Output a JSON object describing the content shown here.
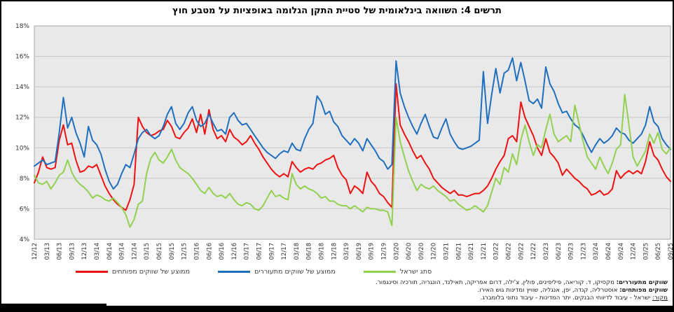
{
  "title": "תרשים 4: השוואה בינלאומית של סטיית התקן הגלומה באופציות על מטבע חוץ",
  "colors": {
    "plot_bg": "#e9e9e9",
    "grid": "#c7c7c7",
    "plot_border": "#a8a8a8",
    "axis_text": "#333333",
    "developed_red": "#ee1111",
    "emerging_blue": "#1f6fbe",
    "israel_green": "#92d050"
  },
  "y_axis": {
    "min": 4,
    "max": 18,
    "step": 2,
    "tick_labels": [
      "4%",
      "6%",
      "8%",
      "10%",
      "12%",
      "14%",
      "16%",
      "18%"
    ]
  },
  "x_axis": {
    "tick_labels": [
      "12/12",
      "03/13",
      "06/13",
      "09/13",
      "12/13",
      "03/14",
      "06/14",
      "09/14",
      "12/14",
      "03/15",
      "06/15",
      "09/15",
      "12/15",
      "03/16",
      "06/16",
      "09/16",
      "12/16",
      "03/17",
      "06/17",
      "09/17",
      "12/17",
      "03/18",
      "06/18",
      "09/18",
      "12/18",
      "03/19",
      "06/19",
      "09/19",
      "12/19",
      "03/20",
      "06/20",
      "09/20",
      "12/20",
      "03/21",
      "06/21",
      "09/21",
      "12/21",
      "03/22",
      "06/22",
      "09/22",
      "12/22",
      "03/23",
      "06/23",
      "09/23",
      "12/23",
      "03/24",
      "06/24",
      "09/24",
      "12/24",
      "03/25",
      "06/25",
      "09/25"
    ],
    "months_per_tick": 3
  },
  "chart_data": {
    "type": "line",
    "x_start": "12/2012",
    "x_end": "09/2025",
    "x_frequency": "monthly",
    "n_points": 154,
    "ylim": [
      4,
      18
    ],
    "grid": true,
    "legend_position": "bottom",
    "series": [
      {
        "name": "ממוצע של שווקים מפותחים",
        "color": "#ee1111",
        "values": [
          7.7,
          8.4,
          9.4,
          8.7,
          8.6,
          8.7,
          10.5,
          11.5,
          10.2,
          10.3,
          9.2,
          8.4,
          8.5,
          8.8,
          8.7,
          8.9,
          8.2,
          7.5,
          7.0,
          6.6,
          6.3,
          6.1,
          5.9,
          6.6,
          7.6,
          12.0,
          11.4,
          11.0,
          10.8,
          10.9,
          11.1,
          11.2,
          11.8,
          11.4,
          10.7,
          10.6,
          11.0,
          11.3,
          11.9,
          11.0,
          12.2,
          10.9,
          12.5,
          11.2,
          10.6,
          10.8,
          10.4,
          11.2,
          10.7,
          10.5,
          10.2,
          10.4,
          10.8,
          10.3,
          9.9,
          9.4,
          9.0,
          8.6,
          8.3,
          8.1,
          8.3,
          8.1,
          9.1,
          8.7,
          8.4,
          8.6,
          8.7,
          8.6,
          8.9,
          9.0,
          9.2,
          9.3,
          9.5,
          8.7,
          8.2,
          7.9,
          7.0,
          7.5,
          7.3,
          7.0,
          8.4,
          7.8,
          7.5,
          7.0,
          6.8,
          6.4,
          6.1,
          14.2,
          11.5,
          10.9,
          10.4,
          9.8,
          9.3,
          9.5,
          9.0,
          8.6,
          8.0,
          7.7,
          7.4,
          7.2,
          7.0,
          7.2,
          6.9,
          6.9,
          6.8,
          6.9,
          7.0,
          7.0,
          7.2,
          7.5,
          8.0,
          8.6,
          9.1,
          9.5,
          10.6,
          10.8,
          10.4,
          13.0,
          12.0,
          11.4,
          10.8,
          10.0,
          9.5,
          10.6,
          9.7,
          9.4,
          9.0,
          8.2,
          8.6,
          8.3,
          8.0,
          7.8,
          7.5,
          7.3,
          6.9,
          7.0,
          7.2,
          6.9,
          7.0,
          7.3,
          8.5,
          8.0,
          8.3,
          8.5,
          8.3,
          8.5,
          8.3,
          9.1,
          10.4,
          9.5,
          9.2,
          8.6,
          8.1,
          7.8
        ]
      },
      {
        "name": "ממוצע של שווקים מתעוררים",
        "color": "#1f6fbe",
        "values": [
          8.8,
          9.0,
          9.2,
          8.9,
          9.0,
          9.1,
          11.0,
          13.3,
          11.3,
          12.0,
          11.0,
          10.3,
          9.4,
          11.4,
          10.5,
          10.2,
          9.6,
          8.6,
          7.8,
          7.3,
          7.6,
          8.3,
          8.9,
          8.7,
          9.6,
          10.6,
          11.0,
          11.2,
          10.8,
          10.6,
          10.8,
          11.4,
          12.2,
          12.7,
          11.6,
          11.2,
          11.6,
          12.3,
          12.7,
          11.8,
          11.4,
          11.6,
          12.2,
          11.6,
          11.1,
          11.2,
          10.9,
          12.0,
          12.3,
          11.8,
          11.5,
          11.6,
          11.2,
          10.8,
          10.4,
          10.0,
          9.7,
          9.5,
          9.3,
          9.6,
          9.8,
          9.7,
          10.3,
          9.9,
          9.8,
          10.6,
          11.2,
          11.6,
          13.4,
          13.0,
          12.2,
          12.4,
          11.7,
          11.4,
          10.8,
          10.5,
          10.2,
          10.6,
          10.3,
          9.8,
          10.6,
          10.2,
          9.8,
          9.3,
          9.1,
          8.6,
          8.9,
          15.7,
          13.6,
          12.7,
          12.0,
          11.4,
          10.9,
          11.6,
          12.2,
          11.4,
          10.7,
          10.6,
          11.3,
          11.9,
          10.9,
          10.4,
          10.0,
          9.9,
          10.0,
          10.1,
          10.3,
          10.5,
          15.0,
          11.6,
          13.5,
          15.2,
          13.6,
          14.9,
          15.1,
          15.9,
          14.4,
          15.6,
          14.4,
          13.1,
          12.9,
          13.2,
          12.6,
          15.3,
          14.2,
          13.7,
          12.9,
          12.3,
          12.4,
          11.9,
          11.5,
          11.3,
          10.8,
          10.2,
          9.7,
          10.2,
          10.6,
          10.3,
          10.5,
          10.8,
          11.3,
          11.0,
          10.9,
          10.5,
          10.3,
          10.6,
          10.9,
          11.5,
          12.7,
          11.7,
          11.4,
          10.6,
          10.2,
          9.9
        ]
      },
      {
        "name": "סתג ישראל",
        "color": "#92d050",
        "values": [
          8.2,
          7.7,
          7.6,
          7.8,
          7.3,
          7.7,
          8.2,
          8.4,
          9.2,
          8.4,
          7.9,
          7.6,
          7.4,
          7.1,
          6.7,
          6.9,
          6.8,
          6.6,
          6.5,
          6.7,
          6.4,
          6.1,
          5.6,
          4.8,
          5.3,
          6.3,
          6.5,
          8.3,
          9.3,
          9.7,
          9.2,
          9.0,
          9.4,
          9.9,
          9.2,
          8.7,
          8.5,
          8.3,
          8.0,
          7.6,
          7.2,
          7.0,
          7.4,
          7.0,
          6.8,
          6.9,
          6.7,
          7.0,
          6.6,
          6.3,
          6.2,
          6.4,
          6.3,
          6.0,
          5.9,
          6.2,
          6.7,
          7.2,
          6.8,
          6.9,
          6.7,
          6.6,
          8.3,
          7.6,
          7.3,
          7.5,
          7.3,
          7.2,
          7.0,
          6.7,
          6.8,
          6.5,
          6.5,
          6.3,
          6.2,
          6.2,
          6.0,
          6.2,
          6.0,
          5.8,
          6.1,
          6.0,
          6.0,
          5.9,
          5.9,
          5.8,
          4.9,
          12.0,
          10.4,
          9.4,
          8.5,
          7.8,
          7.2,
          7.6,
          7.4,
          7.3,
          7.5,
          7.2,
          7.0,
          6.8,
          6.5,
          6.6,
          6.3,
          6.1,
          5.9,
          6.0,
          6.2,
          6.0,
          5.8,
          6.2,
          7.1,
          8.0,
          7.6,
          8.7,
          8.4,
          9.6,
          8.9,
          10.5,
          11.5,
          10.4,
          9.5,
          10.2,
          10.0,
          11.2,
          12.2,
          10.9,
          10.4,
          10.6,
          10.8,
          10.4,
          12.8,
          11.6,
          10.4,
          9.4,
          9.0,
          8.6,
          9.4,
          8.8,
          8.3,
          9.0,
          9.9,
          10.2,
          13.5,
          11.5,
          9.4,
          8.8,
          9.3,
          9.8,
          10.9,
          10.3,
          11.0,
          9.9,
          9.6,
          10.0
        ]
      }
    ]
  },
  "footnotes": [
    {
      "lead": "שווקים מתעוררים:",
      "text": " מקסיקו, ד. קוריאה, פיליפינים, פולין, צ'ילה, דרום אפריקה, תאילנד, הונגריה, תורכיה וסינגפור.",
      "lead_style": "bold"
    },
    {
      "lead": "שווקים מפותחים:",
      "text": " אוסטרליה, קנדה, יפן, אנגליה, שוויץ ומדינות גוש האירו.",
      "lead_style": "bold"
    },
    {
      "lead": "מקור:",
      "text": " ישראל - עיבוד לדיווחי הבנקים. יתר המדינות - עיבוד נתוני בלומברג.",
      "lead_style": "underline"
    }
  ]
}
